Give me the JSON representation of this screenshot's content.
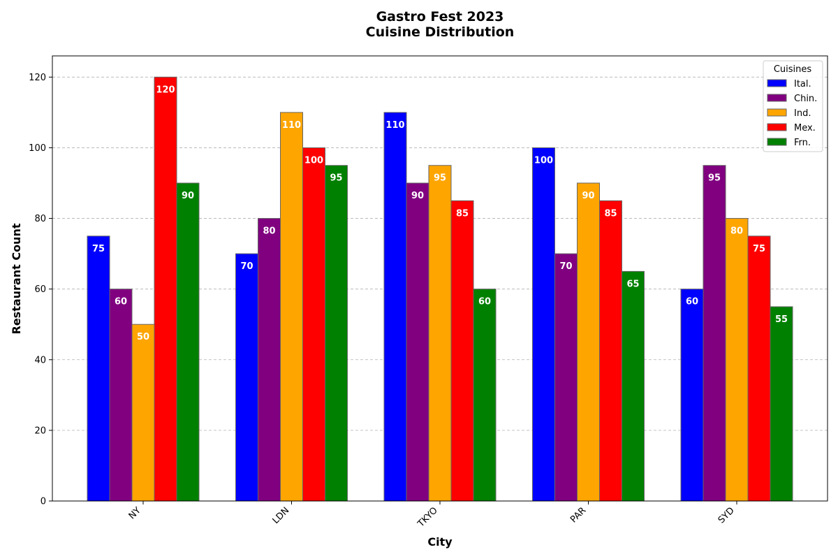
{
  "chart_data": {
    "type": "bar",
    "title": "Gastro Fest 2023",
    "subtitle": "Cuisine Distribution",
    "xlabel": "City",
    "ylabel": "Restaurant Count",
    "categories": [
      "NY",
      "LDN",
      "TKYO",
      "PAR",
      "SYD"
    ],
    "ylim": [
      0,
      126
    ],
    "yticks": [
      0,
      20,
      40,
      60,
      80,
      100,
      120
    ],
    "grid": true,
    "legend_title": "Cuisines",
    "legend_position": "top-right",
    "series": [
      {
        "name": "Ital.",
        "color": "#0000ff",
        "values": [
          75,
          70,
          110,
          100,
          60
        ]
      },
      {
        "name": "Chin.",
        "color": "#800080",
        "values": [
          60,
          80,
          90,
          70,
          95
        ]
      },
      {
        "name": "Ind.",
        "color": "#ffa500",
        "values": [
          50,
          110,
          95,
          90,
          80
        ]
      },
      {
        "name": "Mex.",
        "color": "#ff0000",
        "values": [
          120,
          100,
          85,
          85,
          75
        ]
      },
      {
        "name": "Frn.",
        "color": "#008000",
        "values": [
          90,
          95,
          60,
          65,
          55
        ]
      }
    ]
  }
}
